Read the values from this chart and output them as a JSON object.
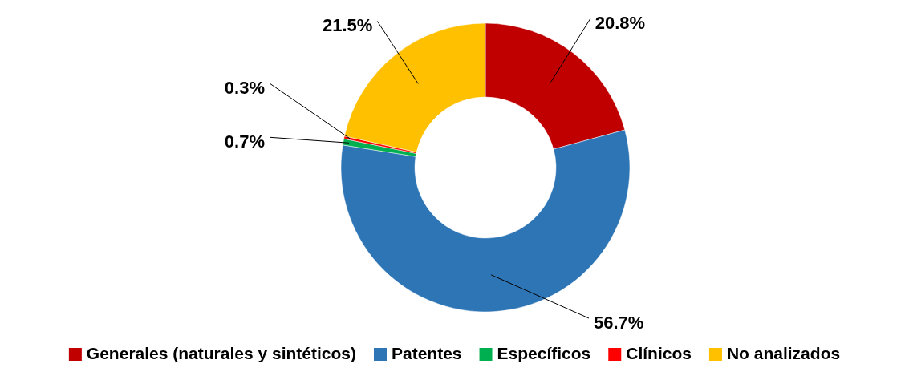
{
  "chart_data": {
    "type": "donut",
    "categories": [
      "Generales (naturales y sintéticos)",
      "Patentes",
      "Específicos",
      "Clínicos",
      "No analizados"
    ],
    "values": [
      20.8,
      56.7,
      0.7,
      0.3,
      21.5
    ],
    "colors": [
      "#c00000",
      "#2e75b6",
      "#00b050",
      "#ff0000",
      "#ffc000"
    ],
    "value_labels": [
      "20.8%",
      "56.7%",
      "0.7%",
      "0.3%",
      "21.5%"
    ],
    "legend": "bottom"
  }
}
